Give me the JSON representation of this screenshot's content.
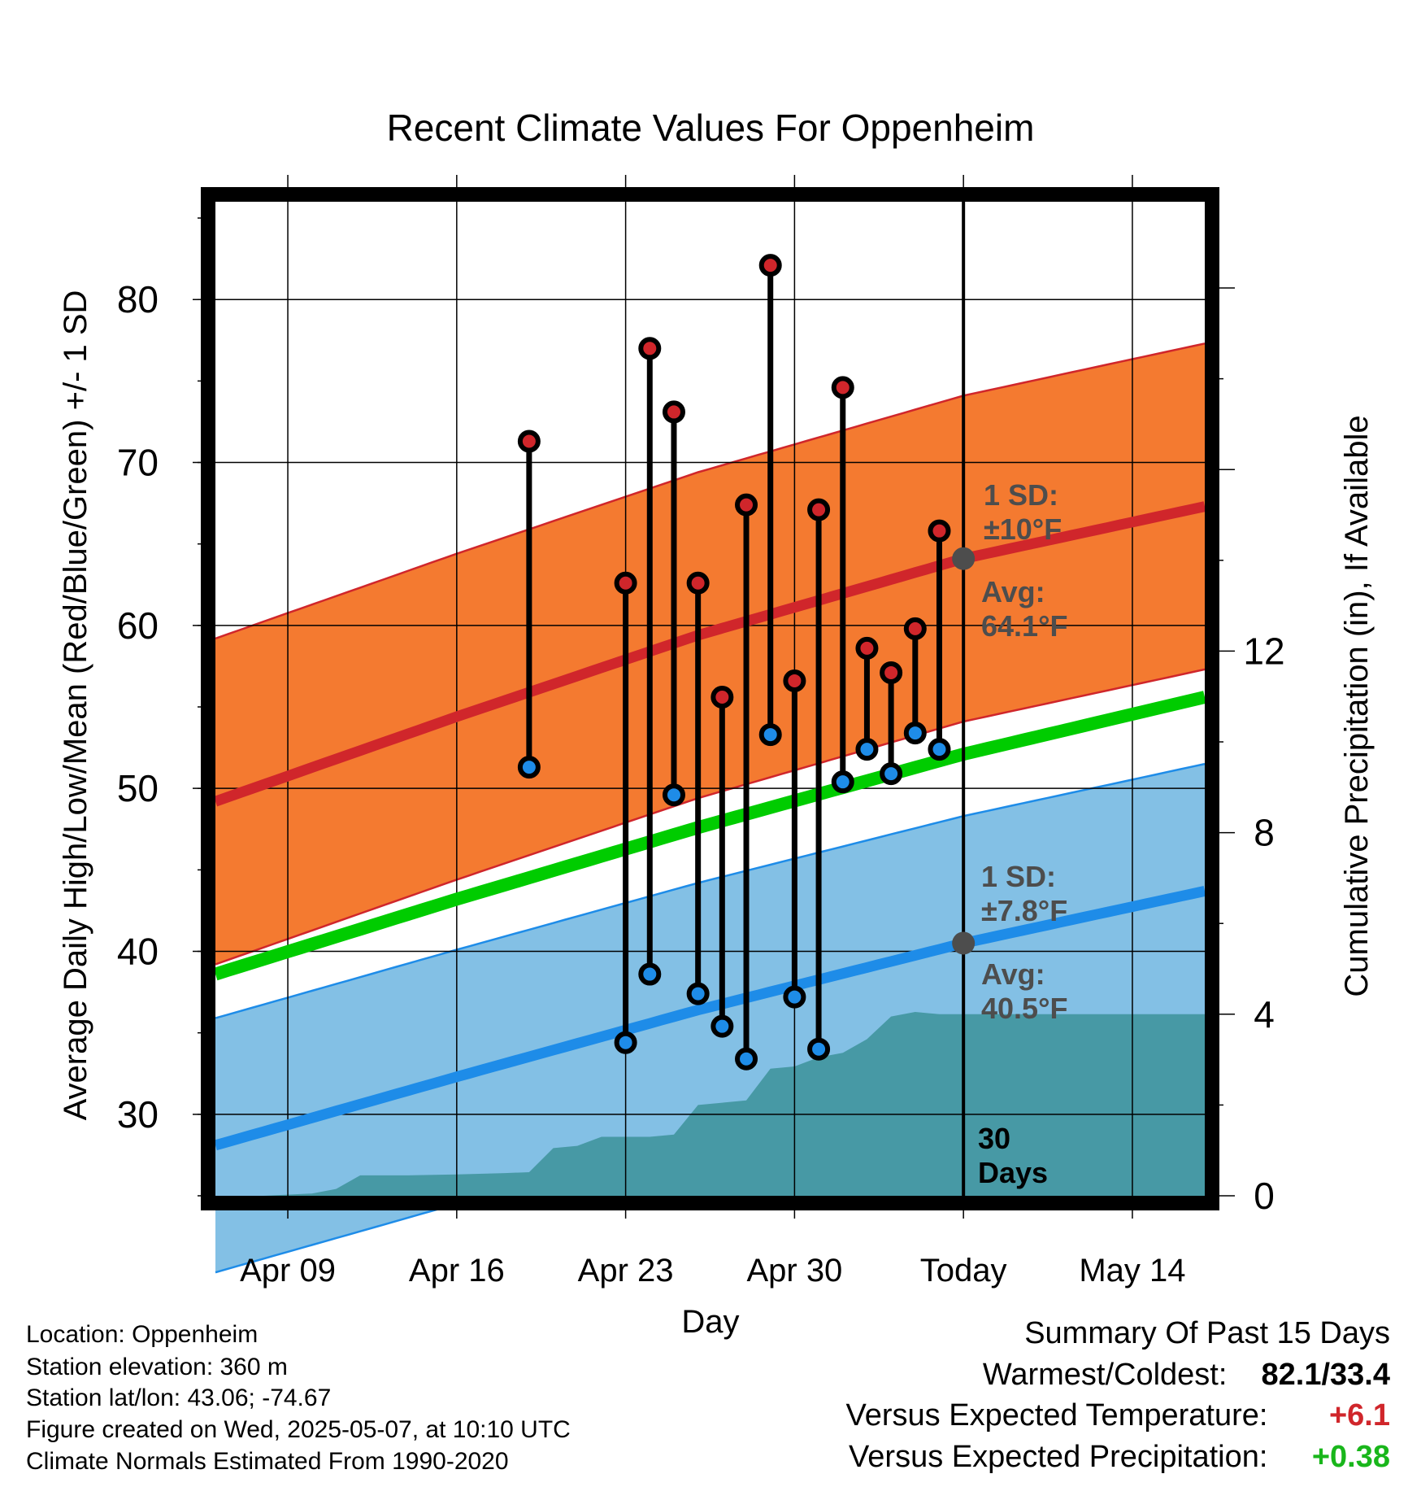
{
  "title": "Recent Climate Values For Oppenheim",
  "chart_data": {
    "type": "line",
    "title": "Recent Climate Values For Oppenheim",
    "xlabel": "Day",
    "ylabel_left": "Average Daily High/Low/Mean (Red/Blue/Green) +/- 1 SD",
    "ylabel_right": "Cumulative Precipitation (in), If Available",
    "x_ticks": [
      {
        "label": "Apr 09",
        "date": "2025-04-09"
      },
      {
        "label": "Apr 16",
        "date": "2025-04-16"
      },
      {
        "label": "Apr 23",
        "date": "2025-04-23"
      },
      {
        "label": "Apr 30",
        "date": "2025-04-30"
      },
      {
        "label": "Today",
        "date": "2025-05-07"
      },
      {
        "label": "May 14",
        "date": "2025-05-14"
      }
    ],
    "xlim": [
      "2025-04-06",
      "2025-05-17"
    ],
    "ylim_left": [
      25,
      86
    ],
    "y_ticks_left": [
      "30",
      "40",
      "50",
      "60",
      "70",
      "80"
    ],
    "ylim_right": [
      0,
      21.9
    ],
    "y_ticks_right": [
      "0",
      "4",
      "8",
      "12"
    ],
    "grid": true,
    "colors": {
      "high_band": "#f47a30",
      "high_line": "#d0262b",
      "low_band": "#83c0e5",
      "low_line": "#1e8ce8",
      "mean_line": "#00cc00",
      "precip": "#4799a5",
      "max_marker": "#d0262b",
      "min_marker": "#1e8ce8",
      "avg_marker": "#4d4d4d",
      "annotation_text": "#4d4d4d"
    },
    "normals": {
      "dates": [
        "2025-04-06",
        "2025-04-16",
        "2025-04-26",
        "2025-05-07",
        "2025-05-17"
      ],
      "high_mean": [
        49.2,
        54.4,
        59.4,
        64.1,
        67.3
      ],
      "high_sd": 10,
      "low_mean": [
        28.1,
        32.3,
        36.4,
        40.5,
        43.7
      ],
      "low_sd": 7.8,
      "mean": [
        38.6,
        43.2,
        47.6,
        52.1,
        55.6
      ]
    },
    "daily": [
      {
        "date": "2025-04-19",
        "high": 71.3,
        "low": 51.3
      },
      {
        "date": "2025-04-23",
        "high": 62.6,
        "low": 34.4
      },
      {
        "date": "2025-04-24",
        "high": 77.0,
        "low": 38.6
      },
      {
        "date": "2025-04-25",
        "high": 73.1,
        "low": 49.6
      },
      {
        "date": "2025-04-26",
        "high": 62.6,
        "low": 37.4
      },
      {
        "date": "2025-04-27",
        "high": 55.6,
        "low": 35.4
      },
      {
        "date": "2025-04-28",
        "high": 67.4,
        "low": 33.4
      },
      {
        "date": "2025-04-29",
        "high": 82.1,
        "low": 53.3
      },
      {
        "date": "2025-04-30",
        "high": 56.6,
        "low": 37.2
      },
      {
        "date": "2025-05-01",
        "high": 67.1,
        "low": 34.0
      },
      {
        "date": "2025-05-02",
        "high": 74.6,
        "low": 50.4
      },
      {
        "date": "2025-05-03",
        "high": 58.6,
        "low": 52.4
      },
      {
        "date": "2025-05-04",
        "high": 57.1,
        "low": 50.9
      },
      {
        "date": "2025-05-05",
        "high": 59.8,
        "low": 53.4
      },
      {
        "date": "2025-05-06",
        "high": 65.8,
        "low": 52.4
      }
    ],
    "precip_cumulative": {
      "dates": [
        "2025-04-06",
        "2025-04-08",
        "2025-04-10",
        "2025-04-11",
        "2025-04-12",
        "2025-04-14",
        "2025-04-16",
        "2025-04-18",
        "2025-04-19",
        "2025-04-20",
        "2025-04-21",
        "2025-04-22",
        "2025-04-23",
        "2025-04-24",
        "2025-04-25",
        "2025-04-26",
        "2025-04-27",
        "2025-04-28",
        "2025-04-29",
        "2025-04-30",
        "2025-05-01",
        "2025-05-02",
        "2025-05-03",
        "2025-05-04",
        "2025-05-05",
        "2025-05-06",
        "2025-05-07",
        "2025-05-17"
      ],
      "values": [
        0,
        0,
        0.05,
        0.15,
        0.45,
        0.45,
        0.47,
        0.5,
        0.52,
        1.05,
        1.1,
        1.3,
        1.3,
        1.3,
        1.35,
        2.0,
        2.05,
        2.1,
        2.8,
        2.85,
        3.05,
        3.15,
        3.45,
        3.95,
        4.05,
        4.0,
        4.0,
        4.0
      ]
    },
    "annotations": [
      {
        "text_lines": [
          "1 SD:",
          "±10°F"
        ],
        "series": "high"
      },
      {
        "text_lines": [
          "Avg:",
          "64.1°F"
        ],
        "value": 64.1,
        "series": "high"
      },
      {
        "text_lines": [
          "1 SD:",
          "±7.8°F"
        ],
        "series": "low"
      },
      {
        "text_lines": [
          "Avg:",
          "40.5°F"
        ],
        "value": 40.5,
        "series": "low"
      },
      {
        "text_lines": [
          "30",
          "Days"
        ],
        "series": "precip"
      }
    ]
  },
  "info": {
    "location": "Location: Oppenheim",
    "elevation": "Station elevation: 360 m",
    "latlon": "Station lat/lon: 43.06; -74.67",
    "created": "Figure created on Wed, 2025-05-07, at 10:10 UTC",
    "normals": "Climate Normals Estimated From 1990-2020"
  },
  "summary": {
    "heading": "Summary Of Past 15 Days",
    "warm_cold_label": "Warmest/Coldest:",
    "warm_cold_value": "82.1/33.4",
    "temp_label": "Versus Expected Temperature:",
    "temp_value": "+6.1",
    "temp_color": "#d0262b",
    "precip_label": "Versus Expected Precipitation:",
    "precip_value": "+0.38",
    "precip_color": "#19b61b"
  }
}
